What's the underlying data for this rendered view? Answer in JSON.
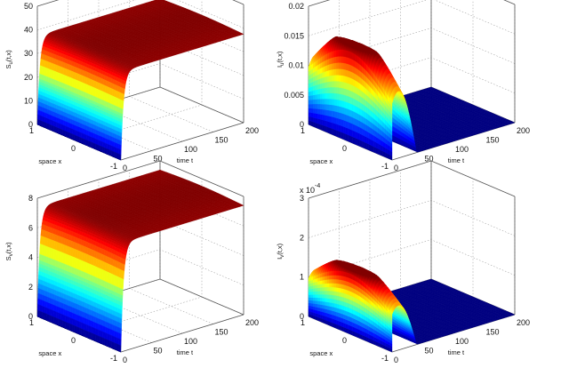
{
  "chart_data": [
    {
      "type": "surface",
      "zlabel": "S_u(t,x)",
      "zlabel_main": "S",
      "zlabel_sub": "u",
      "xlabel": "space x",
      "ylabel": "time t",
      "x_ticks": [
        "-1",
        "0",
        "1"
      ],
      "t_ticks": [
        "0",
        "50",
        "100",
        "150",
        "200"
      ],
      "z_ticks": [
        "0",
        "10",
        "20",
        "30",
        "40",
        "50"
      ],
      "zlim": [
        0,
        50
      ],
      "tlim": [
        0,
        200
      ],
      "xlim": [
        -1,
        1
      ],
      "colormap": "jet",
      "profile": "rise",
      "steady_value": 38,
      "surface_values": {
        "t": [
          0,
          5,
          10,
          20,
          40,
          60,
          100,
          150,
          200
        ],
        "x": [
          -1,
          -0.5,
          0,
          0.5,
          1
        ],
        "z_at_x0": [
          0,
          28,
          35,
          37.5,
          38,
          38,
          38,
          38,
          38
        ]
      },
      "exponent": ""
    },
    {
      "type": "surface",
      "zlabel": "I_u(t,x)",
      "zlabel_main": "I",
      "zlabel_sub": "u",
      "xlabel": "space x",
      "ylabel": "time t",
      "x_ticks": [
        "-1",
        "0",
        "1"
      ],
      "t_ticks": [
        "0",
        "50",
        "100",
        "150",
        "200"
      ],
      "z_ticks": [
        "0",
        "0.005",
        "0.01",
        "0.015",
        "0.02"
      ],
      "zlim": [
        0,
        0.02
      ],
      "tlim": [
        0,
        200
      ],
      "xlim": [
        -1,
        1
      ],
      "colormap": "jet",
      "profile": "hump",
      "peak_value": 0.016,
      "surface_values": {
        "t": [
          0,
          5,
          10,
          20,
          30,
          40,
          50,
          100,
          200
        ],
        "x": [
          -1,
          -0.5,
          0,
          0.5,
          1
        ],
        "z_at_x0": [
          0.01,
          0.013,
          0.015,
          0.016,
          0.014,
          0.008,
          0,
          0,
          0
        ]
      },
      "exponent": ""
    },
    {
      "type": "surface",
      "zlabel": "S_v(t,x)",
      "zlabel_main": "S",
      "zlabel_sub": "v",
      "xlabel": "space x",
      "ylabel": "time t",
      "x_ticks": [
        "-1",
        "0",
        "1"
      ],
      "t_ticks": [
        "0",
        "50",
        "100",
        "150",
        "200"
      ],
      "z_ticks": [
        "0",
        "2",
        "4",
        "6",
        "8"
      ],
      "zlim": [
        0,
        8
      ],
      "tlim": [
        0,
        200
      ],
      "xlim": [
        -1,
        1
      ],
      "colormap": "jet",
      "profile": "rise",
      "steady_value": 7.5,
      "surface_values": {
        "t": [
          0,
          5,
          10,
          20,
          40,
          60,
          100,
          150,
          200
        ],
        "x": [
          -1,
          -0.5,
          0,
          0.5,
          1
        ],
        "z_at_x0": [
          0,
          5.5,
          6.9,
          7.4,
          7.5,
          7.5,
          7.5,
          7.5,
          7.5
        ]
      },
      "exponent": ""
    },
    {
      "type": "surface",
      "zlabel": "I_v(t,x)",
      "zlabel_main": "I",
      "zlabel_sub": "v",
      "xlabel": "space x",
      "ylabel": "time t",
      "x_ticks": [
        "-1",
        "0",
        "1"
      ],
      "t_ticks": [
        "0",
        "50",
        "100",
        "150",
        "200"
      ],
      "z_ticks": [
        "0",
        "1",
        "2",
        "3"
      ],
      "zlim": [
        0,
        3
      ],
      "tlim": [
        0,
        200
      ],
      "xlim": [
        -1,
        1
      ],
      "colormap": "jet",
      "profile": "hump",
      "peak_value": 1.6,
      "surface_values": {
        "t": [
          0,
          5,
          10,
          20,
          30,
          40,
          50,
          100,
          200
        ],
        "x": [
          -1,
          -0.5,
          0,
          0.5,
          1
        ],
        "z_at_x0": [
          1.0,
          1.3,
          1.5,
          1.6,
          1.4,
          0.8,
          0,
          0,
          0
        ]
      },
      "exponent": "x 10^-4",
      "exponent_base": "x 10",
      "exponent_power": "-4"
    }
  ]
}
